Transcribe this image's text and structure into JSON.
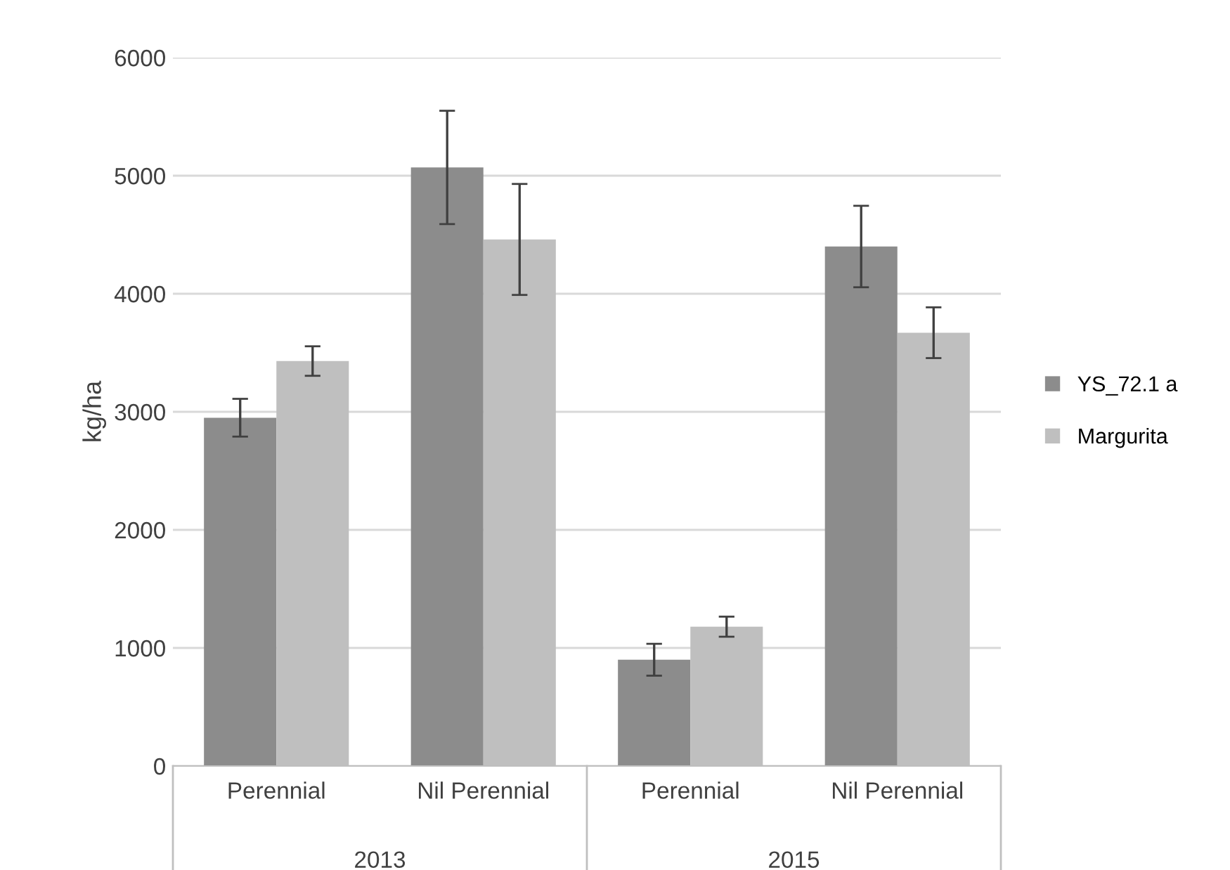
{
  "chart_data": {
    "type": "bar",
    "ylabel": "kg/ha",
    "categories": [
      "Perennial",
      "Nil Perennial",
      "Perennial",
      "Nil Perennial"
    ],
    "annotations": [
      "2013",
      "2015"
    ],
    "series": [
      {
        "name": "YS_72.1 a",
        "color": "#8c8c8c",
        "values": [
          2950,
          5070,
          900,
          4400
        ],
        "errors": [
          160,
          480,
          135,
          345
        ]
      },
      {
        "name": "Margurita",
        "color": "#bfbfbf",
        "values": [
          3430,
          4460,
          1180,
          3670
        ],
        "errors": [
          125,
          470,
          85,
          215
        ]
      }
    ],
    "ylim": [
      0,
      6000
    ],
    "yticks": [
      0,
      1000,
      2000,
      3000,
      4000,
      5000,
      6000
    ],
    "grid": "y",
    "legend": "right"
  }
}
